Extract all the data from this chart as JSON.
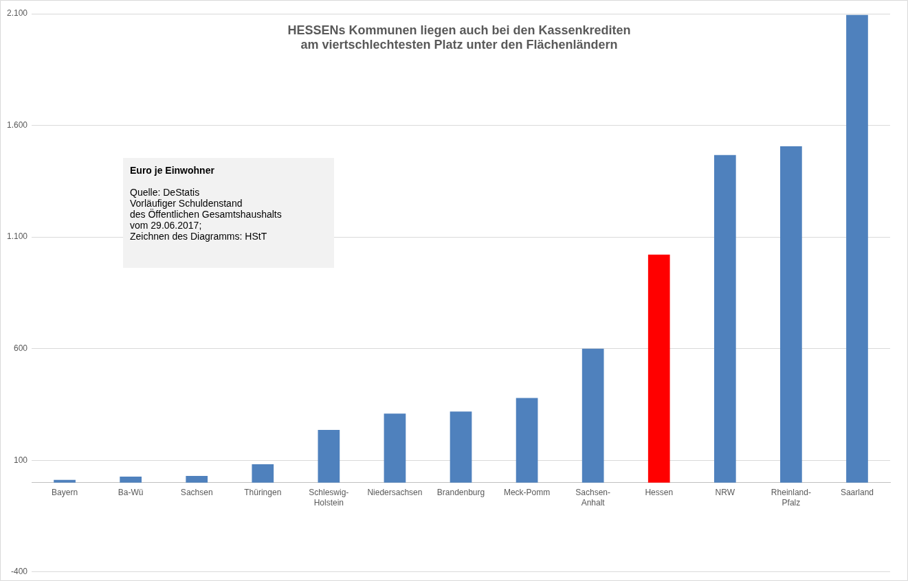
{
  "chart_data": {
    "type": "bar",
    "title": "HESSENs Kommunen liegen auch bei den Kassenkrediten\nam viertschlechtesten Platz unter den Flächenländern",
    "categories": [
      "Bayern",
      "Ba-Wü",
      "Sachsen",
      "Thüringen",
      "Schleswig-Holstein",
      "Niedersachsen",
      "Brandenburg",
      "Meck-Pomm",
      "Sachsen-Anhalt",
      "Hessen",
      "NRW",
      "Rheinland-Pfalz",
      "Saarland"
    ],
    "values": [
      12,
      27,
      30,
      82,
      236,
      309,
      318,
      379,
      600,
      1021,
      1467,
      1506,
      2095
    ],
    "colors": [
      "#4f81bd",
      "#4f81bd",
      "#4f81bd",
      "#4f81bd",
      "#4f81bd",
      "#4f81bd",
      "#4f81bd",
      "#4f81bd",
      "#4f81bd",
      "#ff0000",
      "#4f81bd",
      "#4f81bd",
      "#4f81bd"
    ],
    "ylim": [
      -400,
      2100
    ],
    "yticks": [
      -400,
      100,
      600,
      {
        "value": 1100,
        "label": "1.100"
      },
      {
        "value": 1600,
        "label": "1.600"
      },
      {
        "value": 2100,
        "label": "2.100"
      }
    ],
    "grid": "y",
    "annotations": [
      "Euro je Einwohner",
      "Quelle: DeStatis\nVorläufiger Schuldenstand\ndes Öffentlichen Gesamtshaushalts\nvom 29.06.2017;\nZeichnen des Diagramms: HStT"
    ]
  }
}
